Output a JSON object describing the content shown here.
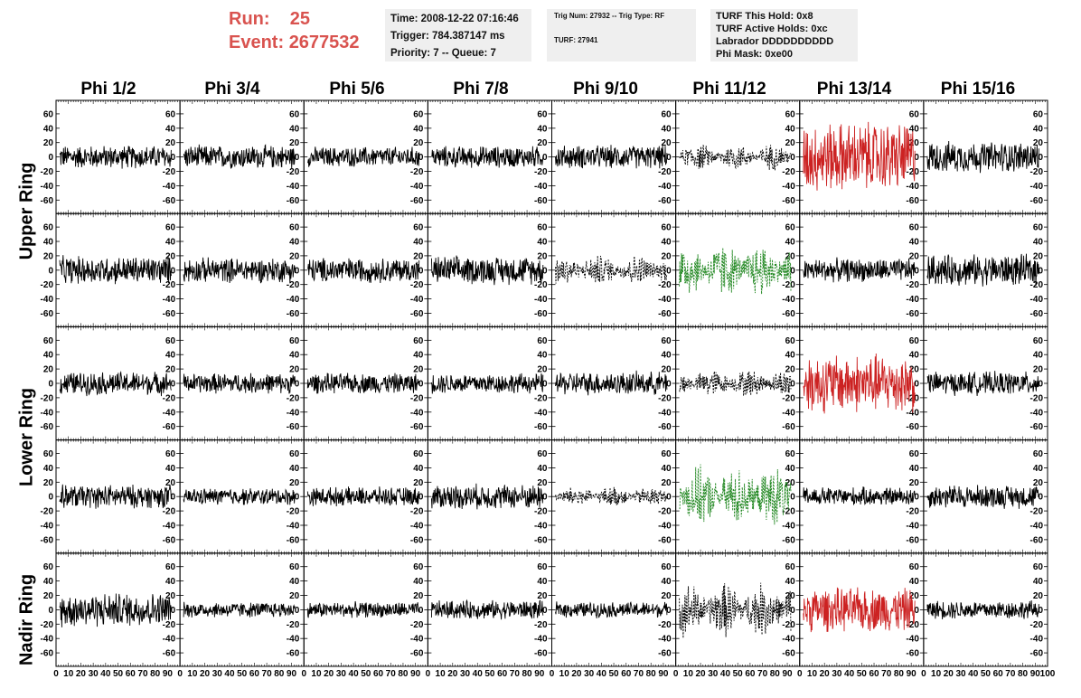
{
  "header": {
    "run_label": "Run:",
    "run_value": "25",
    "event_label": "Event:",
    "event_value": "2677532",
    "time": "Time: 2008-12-22 07:16:46",
    "trigger": "Trigger: 784.387147 ms",
    "priority": "Priority: 7 -- Queue: 7",
    "trig_num": "Trig Num: 27932 -- Trig Type: RF",
    "turf": "TURF: 27941",
    "turf_this_hold": "TURF This Hold: 0x8",
    "turf_active_holds": "TURF Active Holds: 0xc",
    "labrador": "Labrador DDDDDDDDDD",
    "phi_mask": "Phi Mask: 0xe00"
  },
  "columns": [
    "Phi 1/2",
    "Phi 3/4",
    "Phi 5/6",
    "Phi 7/8",
    "Phi 9/10",
    "Phi 11/12",
    "Phi 13/14",
    "Phi 15/16"
  ],
  "row_groups": [
    {
      "label": "Upper Ring",
      "rows": [
        0,
        1
      ]
    },
    {
      "label": "Lower Ring",
      "rows": [
        2,
        3
      ]
    },
    {
      "label": "Nadir Ring",
      "rows": [
        4
      ]
    }
  ],
  "colors": {
    "normal": "#000000",
    "red": "#cc2222",
    "green": "#228822"
  },
  "chart_data": {
    "type": "line",
    "ylim": [
      -75,
      75
    ],
    "yticks": [
      -60,
      -40,
      -20,
      0,
      20,
      40,
      60
    ],
    "xlim": [
      0,
      100
    ],
    "xticks": [
      0,
      10,
      20,
      30,
      40,
      50,
      60,
      70,
      80,
      90,
      100
    ],
    "xtick_labels": [
      "0",
      "10",
      "20",
      "30",
      "40",
      "50",
      "60",
      "70",
      "80",
      "90",
      "100"
    ],
    "samples": 260,
    "panels": [
      [
        "black",
        "black",
        "black",
        "black",
        "black",
        "dashed",
        "red",
        "black"
      ],
      [
        "black",
        "black",
        "black",
        "black",
        "dashed",
        "green",
        "black",
        "black"
      ],
      [
        "black",
        "black",
        "black",
        "black",
        "black",
        "dashed",
        "red",
        "black"
      ],
      [
        "black",
        "black",
        "black",
        "black",
        "dashed",
        "green",
        "black",
        "black"
      ],
      [
        "black",
        "black",
        "black",
        "black",
        "black",
        "dashed",
        "red",
        "black"
      ]
    ],
    "amplitude": [
      [
        15,
        15,
        13,
        14,
        15,
        17,
        45,
        20
      ],
      [
        18,
        16,
        16,
        18,
        20,
        35,
        15,
        20
      ],
      [
        15,
        13,
        13,
        13,
        15,
        18,
        38,
        15
      ],
      [
        15,
        11,
        12,
        16,
        13,
        38,
        12,
        15
      ],
      [
        22,
        10,
        10,
        12,
        10,
        35,
        28,
        12
      ]
    ]
  }
}
